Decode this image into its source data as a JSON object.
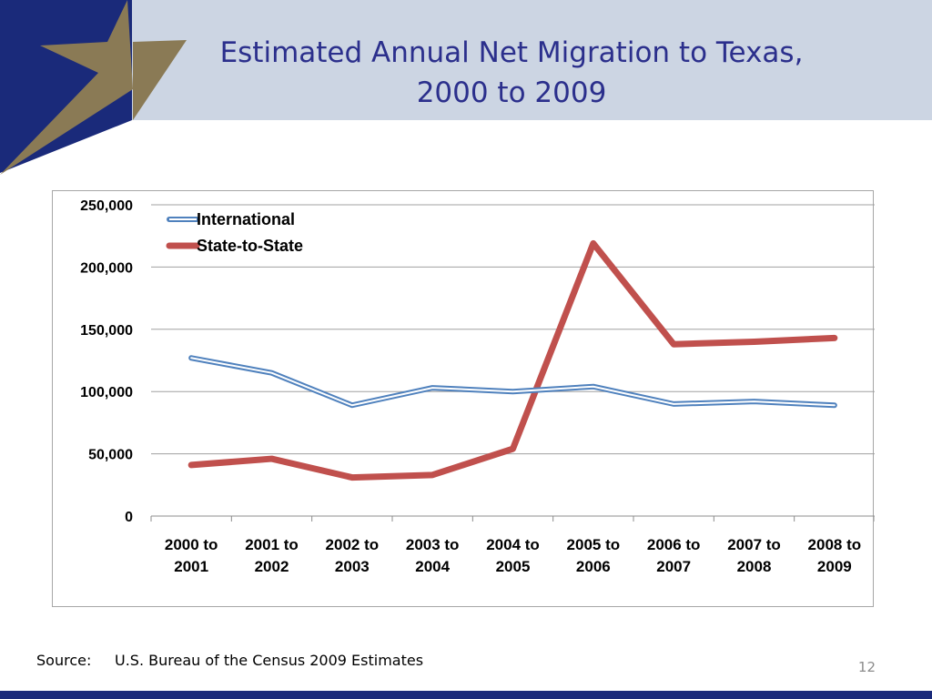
{
  "slide": {
    "title_line1": "Estimated Annual Net Migration to Texas,",
    "title_line2": "2000 to 2009",
    "source_label": "Source:",
    "source_text": "U.S. Bureau of the Census 2009 Estimates",
    "page_number": "12"
  },
  "colors": {
    "header_band": "#ccd5e3",
    "navy": "#1a2a7a",
    "gold": "#8a7a55",
    "title": "#2b2f8c",
    "international": "#4f81bd",
    "state_to_state": "#c0504d"
  },
  "chart_data": {
    "type": "line",
    "categories": [
      [
        "2000 to",
        "2001"
      ],
      [
        "2001 to",
        "2002"
      ],
      [
        "2002 to",
        "2003"
      ],
      [
        "2003 to",
        "2004"
      ],
      [
        "2004 to",
        "2005"
      ],
      [
        "2005 to",
        "2006"
      ],
      [
        "2006 to",
        "2007"
      ],
      [
        "2007 to",
        "2008"
      ],
      [
        "2008 to",
        "2009"
      ]
    ],
    "series": [
      {
        "name": "International",
        "values": [
          127000,
          115000,
          89000,
          103000,
          100000,
          104000,
          90000,
          92000,
          89000
        ]
      },
      {
        "name": "State-to-State",
        "values": [
          41000,
          46000,
          31000,
          33000,
          54000,
          219000,
          138000,
          140000,
          143000
        ]
      }
    ],
    "ylim": [
      0,
      250000
    ],
    "yticks": [
      0,
      50000,
      100000,
      150000,
      200000,
      250000
    ],
    "ytick_labels": [
      "0",
      "50,000",
      "100,000",
      "150,000",
      "200,000",
      "250,000"
    ],
    "legend_position": "top-left",
    "grid": true,
    "xlabel": "",
    "ylabel": ""
  }
}
